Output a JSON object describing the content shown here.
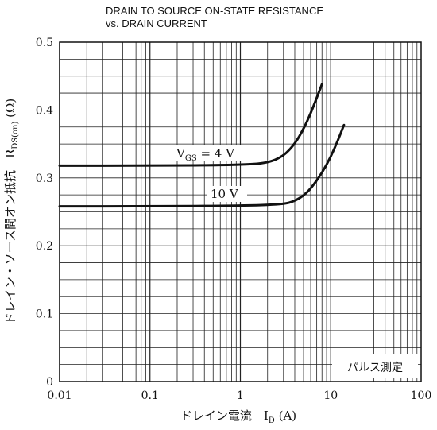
{
  "chart_data": {
    "type": "line",
    "title": "DRAIN TO SOURCE ON-STATE RESISTANCE\nvs. DRAIN CURRENT",
    "xlabel": "ドレイン電流　I",
    "xlabel_sub": "D",
    "xlabel_unit": "(A)",
    "ylabel": "ドレイン・ソース間オン抵抗　R",
    "ylabel_sub": "DS(on)",
    "ylabel_unit": "(Ω)",
    "x_scale": "log",
    "xlim": [
      0.01,
      100
    ],
    "ylim": [
      0,
      0.5
    ],
    "x_ticks": [
      0.01,
      0.1,
      1,
      10,
      100
    ],
    "x_tick_labels": [
      "0.01",
      "0.1",
      "1",
      "10",
      "100"
    ],
    "y_ticks": [
      0,
      0.1,
      0.2,
      0.3,
      0.4,
      0.5
    ],
    "y_tick_labels": [
      "0",
      "0.1",
      "0.2",
      "0.3",
      "0.4",
      "0.5"
    ],
    "grid": true,
    "series": [
      {
        "name": "V_GS = 4 V",
        "label_main": "V",
        "label_sub": "GS",
        "label_rest": " = 4  V",
        "x": [
          0.01,
          0.1,
          1,
          2,
          3,
          4,
          5,
          6,
          7,
          8
        ],
        "y": [
          0.318,
          0.318,
          0.319,
          0.322,
          0.332,
          0.35,
          0.372,
          0.395,
          0.418,
          0.438
        ]
      },
      {
        "name": "10 V",
        "label_main": "10  V",
        "label_sub": "",
        "label_rest": "",
        "x": [
          0.01,
          0.1,
          1,
          3,
          4,
          5,
          6,
          8,
          10,
          12,
          14
        ],
        "y": [
          0.258,
          0.258,
          0.259,
          0.261,
          0.266,
          0.274,
          0.284,
          0.307,
          0.331,
          0.355,
          0.378
        ]
      }
    ],
    "annotation": "パルス測定"
  }
}
